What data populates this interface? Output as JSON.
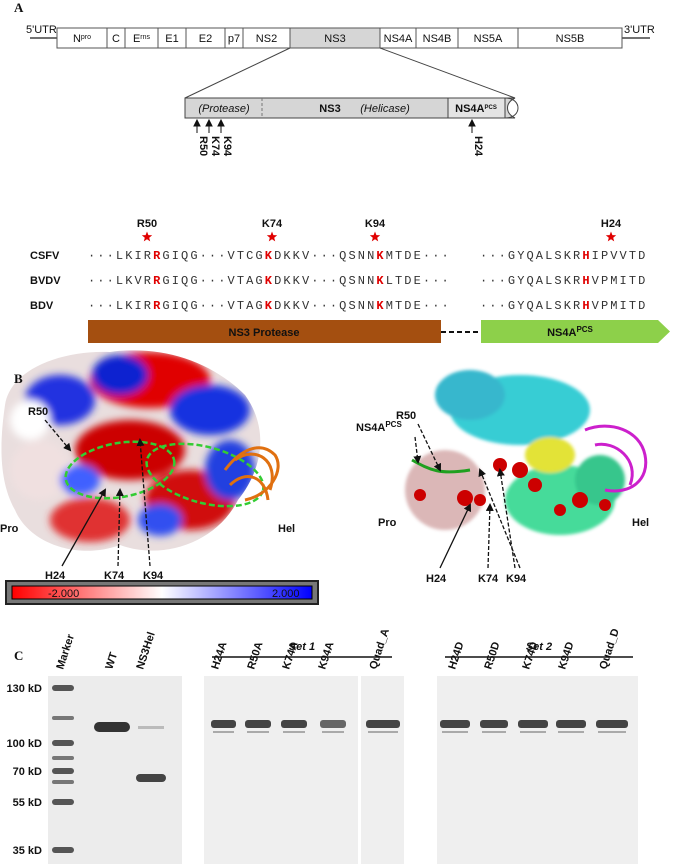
{
  "panel_a": {
    "label": "A",
    "genome": {
      "utr5": "5'UTR",
      "utr3": "3'UTR",
      "segments": [
        {
          "name": "N",
          "sup": "pro"
        },
        {
          "name": "C"
        },
        {
          "name": "E",
          "sup": "rns"
        },
        {
          "name": "E1"
        },
        {
          "name": "E2"
        },
        {
          "name": "p7"
        },
        {
          "name": "NS2"
        },
        {
          "name": "NS3"
        },
        {
          "name": "NS4A"
        },
        {
          "name": "NS4B"
        },
        {
          "name": "NS5A"
        },
        {
          "name": "NS5B"
        }
      ]
    },
    "ns3": {
      "protease": "(Protease)",
      "name": "NS3",
      "helicase": "(Helicase)",
      "ns4a": {
        "name": "NS4A",
        "sup": "PCS"
      },
      "residues": [
        "R50",
        "K74",
        "K94",
        "H24"
      ]
    },
    "alignment": {
      "positions": [
        "R50",
        "K74",
        "K94",
        "H24"
      ],
      "rows": [
        {
          "name": "CSFV",
          "ns3": [
            "···LKIR",
            "R",
            "GIQG···VTCG",
            "K",
            "DKKV···QSNN",
            "K",
            "MTDE···"
          ],
          "ns4a": [
            "···GYQALSKR",
            "H",
            "IPVVTD"
          ]
        },
        {
          "name": "BVDV",
          "ns3": [
            "···LKVR",
            "R",
            "GIQG···VTAG",
            "K",
            "DKKV···QSNN",
            "K",
            "LTDE···"
          ],
          "ns4a": [
            "···GYQALSKR",
            "H",
            "VPMITD"
          ]
        },
        {
          "name": "BDV",
          "ns3": [
            "···LKIR",
            "R",
            "GIQG···VTAG",
            "K",
            "DKKV···QSNN",
            "K",
            "MTDE···"
          ],
          "ns4a": [
            "···GYQALSKR",
            "H",
            "VPMITD"
          ]
        }
      ],
      "protease_bar": "NS3 Protease",
      "ns4a_bar": {
        "name": "NS4A",
        "sup": "PCS"
      }
    }
  },
  "panel_b": {
    "label": "B",
    "left": {
      "r50": "R50",
      "pro": "Pro",
      "hel": "Hel",
      "h24": "H24",
      "k74": "K74",
      "k94": "K94",
      "scale_min": "-2.000",
      "scale_max": "2.000"
    },
    "right": {
      "r50": "R50",
      "ns4a": {
        "name": "NS4A",
        "sup": "PCS"
      },
      "pro": "Pro",
      "hel": "Hel",
      "h24": "H24",
      "k74": "K74",
      "k94": "K94"
    }
  },
  "panel_c": {
    "label": "C",
    "gel1_lanes": [
      "Marker",
      "WT",
      "NS3Hel"
    ],
    "set1": {
      "title": "Set 1",
      "lanes": [
        "H24A",
        "R50A",
        "K74A",
        "K94A",
        "Quad_A"
      ]
    },
    "set2": {
      "title": "Set 2",
      "lanes": [
        "H24D",
        "R50D",
        "K74D",
        "K94D",
        "Quad_D"
      ]
    },
    "markers": [
      "130 kD",
      "100 kD",
      "70 kD",
      "55 kD",
      "35 kD"
    ]
  }
}
